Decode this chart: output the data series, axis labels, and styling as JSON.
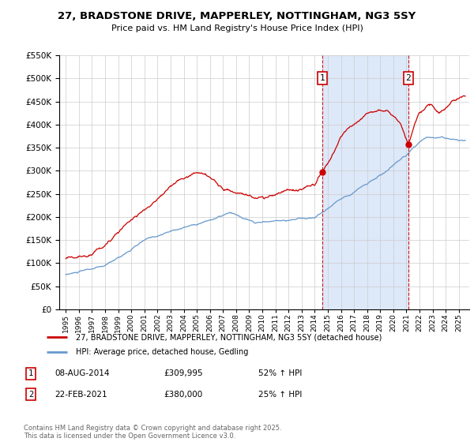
{
  "title": "27, BRADSTONE DRIVE, MAPPERLEY, NOTTINGHAM, NG3 5SY",
  "subtitle": "Price paid vs. HM Land Registry's House Price Index (HPI)",
  "legend_line1": "27, BRADSTONE DRIVE, MAPPERLEY, NOTTINGHAM, NG3 5SY (detached house)",
  "legend_line2": "HPI: Average price, detached house, Gedling",
  "annotation1_label": "1",
  "annotation1_date": "08-AUG-2014",
  "annotation1_price": "£309,995",
  "annotation1_hpi": "52% ↑ HPI",
  "annotation2_label": "2",
  "annotation2_date": "22-FEB-2021",
  "annotation2_price": "£380,000",
  "annotation2_hpi": "25% ↑ HPI",
  "footer": "Contains HM Land Registry data © Crown copyright and database right 2025.\nThis data is licensed under the Open Government Licence v3.0.",
  "sale1_x": 2014.6,
  "sale1_y": 309995,
  "sale2_x": 2021.15,
  "sale2_y": 380000,
  "ylim": [
    0,
    550000
  ],
  "xlim": [
    1994.5,
    2025.8
  ],
  "red_color": "#cc0000",
  "blue_color": "#6699cc",
  "span_color": "#dde8f8",
  "grid_color": "#cccccc"
}
